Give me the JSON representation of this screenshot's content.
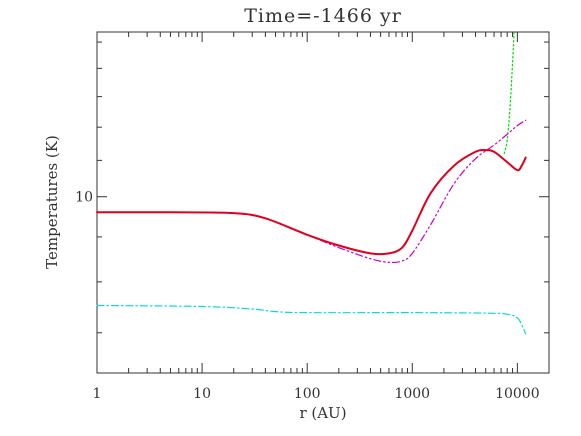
{
  "chart_data": {
    "type": "line",
    "title": "Time=-1466 yr",
    "xlabel": "r (AU)",
    "ylabel": "Temperatures (K)",
    "x_scale": "log",
    "y_scale": "log",
    "xlim": [
      1,
      20000
    ],
    "ylim": [
      6.3,
      15.4
    ],
    "x_ticks": [
      {
        "value": 1,
        "label": "1"
      },
      {
        "value": 10,
        "label": "10"
      },
      {
        "value": 100,
        "label": "100"
      },
      {
        "value": 1000,
        "label": "1000"
      },
      {
        "value": 10000,
        "label": "10000"
      }
    ],
    "y_ticks": [
      {
        "value": 10,
        "label": "10"
      }
    ],
    "grid": false,
    "series": [
      {
        "color": "#e0001e",
        "style": "solid",
        "points": [
          [
            1,
            9.6
          ],
          [
            5,
            9.6
          ],
          [
            20,
            9.58
          ],
          [
            40,
            9.45
          ],
          [
            100,
            9.05
          ],
          [
            200,
            8.8
          ],
          [
            400,
            8.62
          ],
          [
            600,
            8.62
          ],
          [
            800,
            8.75
          ],
          [
            1000,
            9.15
          ],
          [
            1500,
            10.1
          ],
          [
            2500,
            10.85
          ],
          [
            4000,
            11.25
          ],
          [
            5000,
            11.3
          ],
          [
            6000,
            11.25
          ],
          [
            8000,
            10.95
          ],
          [
            10000,
            10.72
          ],
          [
            11000,
            10.85
          ],
          [
            12000,
            11.08
          ]
        ]
      },
      {
        "color": "#cc00cc",
        "style": "dash-dot-dot",
        "points": [
          [
            1,
            9.6
          ],
          [
            5,
            9.6
          ],
          [
            20,
            9.58
          ],
          [
            40,
            9.45
          ],
          [
            100,
            9.05
          ],
          [
            200,
            8.75
          ],
          [
            400,
            8.5
          ],
          [
            600,
            8.42
          ],
          [
            800,
            8.45
          ],
          [
            1000,
            8.62
          ],
          [
            1500,
            9.3
          ],
          [
            2500,
            10.35
          ],
          [
            4000,
            11.05
          ],
          [
            6000,
            11.45
          ],
          [
            8000,
            11.78
          ],
          [
            10000,
            12.05
          ],
          [
            12000,
            12.22
          ]
        ]
      },
      {
        "color": "#00dd00",
        "style": "dotted",
        "points": [
          [
            7500,
            11.2
          ],
          [
            8000,
            11.6
          ],
          [
            8500,
            12.6
          ],
          [
            9000,
            14.2
          ],
          [
            9300,
            15.4
          ]
        ]
      },
      {
        "color": "#00dddd",
        "style": "dash-dot",
        "points": [
          [
            1,
            7.52
          ],
          [
            10,
            7.5
          ],
          [
            30,
            7.45
          ],
          [
            50,
            7.4
          ],
          [
            100,
            7.38
          ],
          [
            1000,
            7.38
          ],
          [
            5000,
            7.37
          ],
          [
            8000,
            7.35
          ],
          [
            10000,
            7.28
          ],
          [
            11000,
            7.15
          ],
          [
            12000,
            6.98
          ]
        ]
      }
    ]
  }
}
